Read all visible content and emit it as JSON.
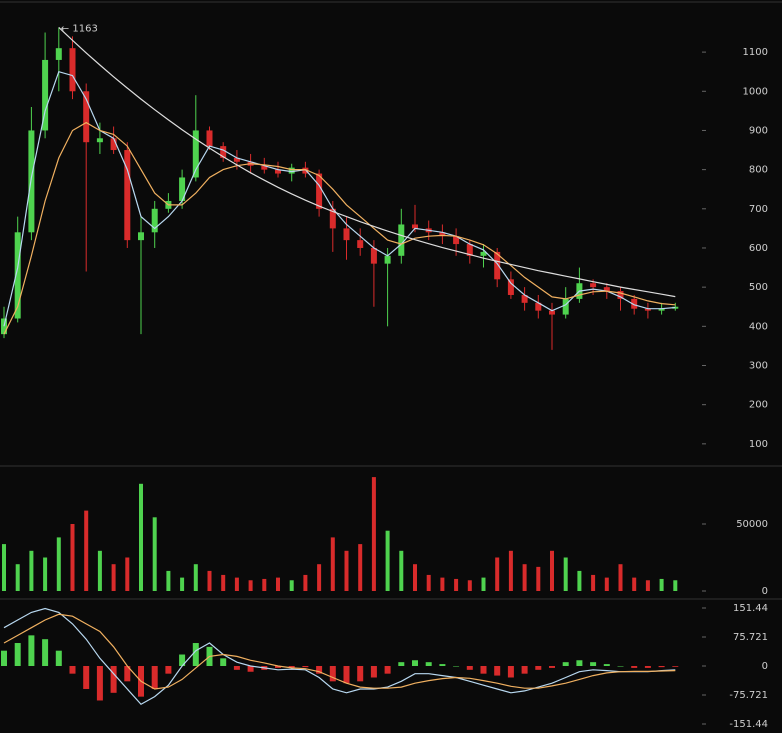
{
  "chart_data": [
    {
      "type": "candlestick",
      "annotation": "← 1163",
      "up_color": "#4fd34f",
      "down_color": "#d92b2b",
      "ylim": [
        46,
        1233
      ],
      "yticks": [
        100,
        200,
        300,
        400,
        500,
        600,
        700,
        800,
        900,
        1000,
        1100
      ],
      "open": [
        380,
        420,
        640,
        900,
        1080,
        1110,
        1000,
        870,
        880,
        850,
        620,
        640,
        700,
        720,
        780,
        900,
        860,
        830,
        820,
        810,
        800,
        790,
        805,
        790,
        700,
        650,
        620,
        600,
        560,
        580,
        660,
        650,
        640,
        630,
        610,
        580,
        590,
        520,
        480,
        460,
        440,
        430,
        470,
        510,
        500,
        490,
        470,
        445,
        440,
        445
      ],
      "high": [
        450,
        680,
        960,
        1150,
        1163,
        1140,
        1020,
        920,
        910,
        870,
        680,
        720,
        740,
        800,
        990,
        910,
        870,
        850,
        840,
        830,
        820,
        815,
        820,
        800,
        720,
        680,
        650,
        620,
        600,
        700,
        710,
        670,
        660,
        650,
        620,
        610,
        600,
        540,
        500,
        480,
        460,
        500,
        550,
        520,
        510,
        500,
        480,
        460,
        460,
        460
      ],
      "low": [
        370,
        410,
        620,
        880,
        1000,
        980,
        540,
        840,
        840,
        600,
        380,
        600,
        690,
        700,
        770,
        850,
        820,
        800,
        790,
        790,
        780,
        770,
        780,
        680,
        590,
        570,
        580,
        450,
        400,
        560,
        640,
        620,
        610,
        580,
        560,
        550,
        500,
        470,
        440,
        420,
        340,
        420,
        460,
        480,
        470,
        440,
        430,
        420,
        430,
        440
      ],
      "close": [
        420,
        640,
        900,
        1080,
        1110,
        1000,
        870,
        880,
        850,
        620,
        640,
        700,
        720,
        780,
        900,
        860,
        830,
        820,
        810,
        800,
        790,
        805,
        790,
        700,
        650,
        620,
        600,
        560,
        580,
        660,
        650,
        640,
        630,
        610,
        580,
        590,
        520,
        480,
        460,
        440,
        430,
        470,
        510,
        500,
        490,
        470,
        445,
        440,
        445,
        450
      ],
      "series": [
        {
          "color": "#b8d8f0",
          "values": [
            400,
            550,
            780,
            950,
            1050,
            1040,
            980,
            900,
            880,
            800,
            680,
            650,
            680,
            720,
            800,
            860,
            850,
            830,
            820,
            810,
            800,
            795,
            800,
            760,
            700,
            660,
            630,
            600,
            580,
            610,
            650,
            645,
            640,
            630,
            610,
            595,
            560,
            510,
            480,
            460,
            440,
            455,
            490,
            495,
            490,
            475,
            455,
            445,
            445,
            448
          ]
        },
        {
          "color": "#f0b060",
          "values": [
            380,
            450,
            580,
            720,
            830,
            900,
            920,
            900,
            890,
            860,
            800,
            740,
            710,
            710,
            740,
            780,
            800,
            810,
            815,
            812,
            808,
            800,
            800,
            785,
            750,
            710,
            680,
            650,
            620,
            610,
            625,
            630,
            632,
            630,
            620,
            608,
            585,
            555,
            525,
            500,
            475,
            470,
            480,
            488,
            490,
            485,
            475,
            465,
            458,
            455
          ]
        },
        {
          "color": "#dddddd",
          "values": [
            null,
            null,
            null,
            null,
            1163,
            1130,
            1098,
            1067,
            1037,
            1008,
            980,
            953,
            927,
            902,
            878,
            855,
            833,
            812,
            792,
            773,
            755,
            738,
            722,
            707,
            693,
            680,
            667,
            655,
            643,
            632,
            621,
            611,
            601,
            592,
            583,
            574,
            566,
            558,
            550,
            542,
            535,
            528,
            521,
            514,
            507,
            500,
            494,
            488,
            482,
            476
          ]
        }
      ]
    },
    {
      "type": "volume",
      "ylim": [
        -5224,
        92537
      ],
      "yticks": [
        0,
        50000
      ],
      "values": [
        35000,
        20000,
        30000,
        25000,
        40000,
        50000,
        60000,
        30000,
        20000,
        25000,
        80000,
        55000,
        15000,
        10000,
        20000,
        15000,
        12000,
        10000,
        8000,
        9000,
        10000,
        8000,
        12000,
        20000,
        40000,
        30000,
        35000,
        85000,
        45000,
        30000,
        20000,
        12000,
        10000,
        9000,
        8000,
        10000,
        25000,
        30000,
        20000,
        18000,
        30000,
        25000,
        15000,
        12000,
        10000,
        20000,
        10000,
        8000,
        9000,
        8000
      ]
    },
    {
      "type": "macd",
      "ylim": [
        -174.9,
        172.3
      ],
      "yticks": [
        151.44,
        75.721,
        0,
        -75.721,
        -151.44
      ],
      "up_color": "#4fd34f",
      "down_color": "#d92b2b",
      "histogram": [
        40,
        60,
        80,
        70,
        40,
        -20,
        -60,
        -90,
        -70,
        -40,
        -80,
        -60,
        -20,
        30,
        60,
        50,
        20,
        -10,
        -15,
        -10,
        -5,
        -5,
        -3,
        -20,
        -40,
        -45,
        -40,
        -30,
        -20,
        10,
        15,
        10,
        5,
        0,
        -10,
        -20,
        -25,
        -30,
        -20,
        -10,
        -5,
        10,
        15,
        10,
        5,
        0,
        -5,
        -5,
        -3,
        -2
      ],
      "series": [
        {
          "color": "#b8d8f0",
          "values": [
            100,
            120,
            140,
            150,
            140,
            110,
            70,
            20,
            -20,
            -60,
            -100,
            -80,
            -50,
            0,
            40,
            60,
            30,
            10,
            0,
            -5,
            -10,
            -8,
            -10,
            -30,
            -60,
            -70,
            -60,
            -60,
            -55,
            -40,
            -20,
            -20,
            -25,
            -30,
            -40,
            -50,
            -60,
            -70,
            -65,
            -55,
            -45,
            -30,
            -15,
            -10,
            -12,
            -15,
            -15,
            -15,
            -12,
            -10
          ]
        },
        {
          "color": "#f0b060",
          "values": [
            60,
            80,
            100,
            120,
            135,
            130,
            110,
            90,
            50,
            0,
            -40,
            -60,
            -55,
            -35,
            -5,
            25,
            30,
            25,
            15,
            8,
            0,
            -5,
            -7,
            -15,
            -30,
            -45,
            -55,
            -58,
            -58,
            -55,
            -45,
            -38,
            -33,
            -30,
            -32,
            -38,
            -45,
            -53,
            -58,
            -58,
            -52,
            -45,
            -35,
            -25,
            -18,
            -15,
            -14,
            -14,
            -13,
            -12
          ]
        }
      ]
    }
  ]
}
